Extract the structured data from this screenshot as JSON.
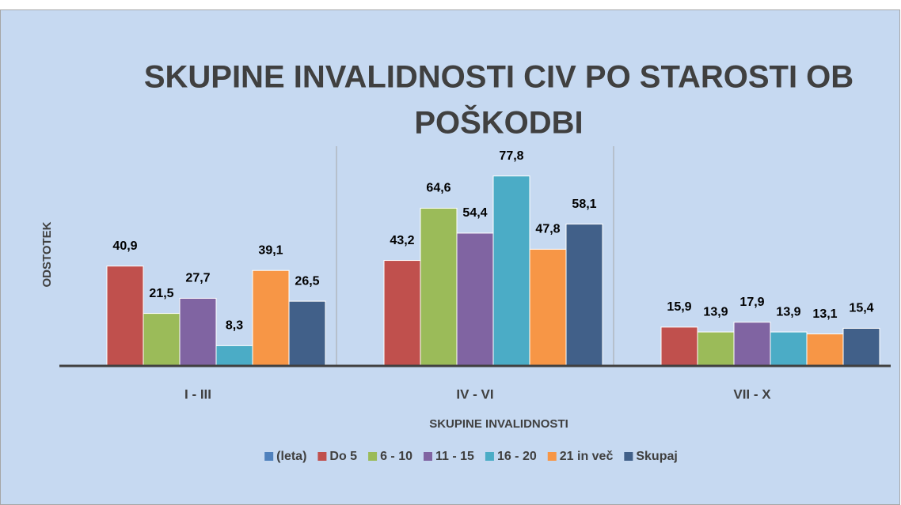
{
  "chart_data": {
    "type": "bar",
    "title": "SKUPINE INVALIDNOSTI CIV PO STAROSTI OB POŠKODBI",
    "x_label": "SKUPINE INVALIDNOSTI",
    "y_label": "ODSTOTEK",
    "categories": [
      "I - III",
      "IV - VI",
      "VII - X"
    ],
    "ylim": [
      0,
      90
    ],
    "series": [
      {
        "name": "(leta)",
        "color": "#4f81bd",
        "values": [
          null,
          null,
          null
        ]
      },
      {
        "name": "Do 5",
        "color": "#c0504d",
        "values": [
          40.9,
          43.2,
          15.9
        ],
        "value_labels": [
          "40,9",
          "43,2",
          "15,9"
        ]
      },
      {
        "name": "6 - 10",
        "color": "#9bbb59",
        "values": [
          21.5,
          64.6,
          13.9
        ],
        "value_labels": [
          "21,5",
          "64,6",
          "13,9"
        ]
      },
      {
        "name": "11 - 15",
        "color": "#8064a2",
        "values": [
          27.7,
          54.4,
          17.9
        ],
        "value_labels": [
          "27,7",
          "54,4",
          "17,9"
        ]
      },
      {
        "name": "16 - 20",
        "color": "#4bacc6",
        "values": [
          8.3,
          77.8,
          13.9
        ],
        "value_labels": [
          "8,3",
          "77,8",
          "13,9"
        ]
      },
      {
        "name": "21 in več",
        "color": "#f79646",
        "values": [
          39.1,
          47.8,
          13.1
        ],
        "value_labels": [
          "39,1",
          "47,8",
          "13,1"
        ]
      },
      {
        "name": "Skupaj",
        "color": "#416089",
        "values": [
          26.5,
          58.1,
          15.4
        ],
        "value_labels": [
          "26,5",
          "58,1",
          "15,4"
        ]
      }
    ],
    "legend": "bottom"
  }
}
